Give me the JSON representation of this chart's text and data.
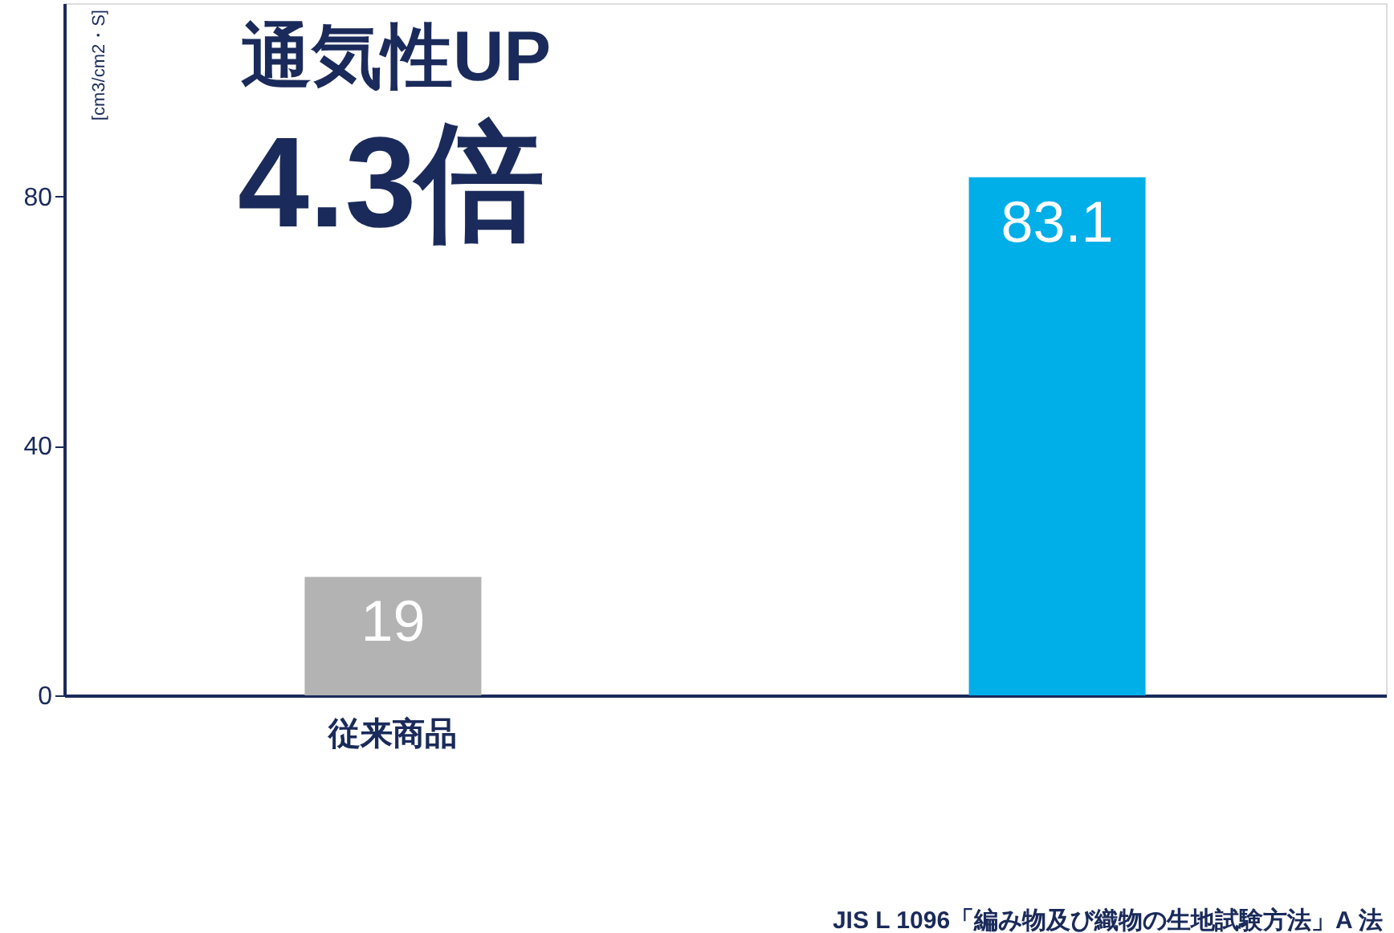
{
  "chart_data": {
    "type": "bar",
    "categories": [
      "従来商品",
      null
    ],
    "series": [
      {
        "colors": [
          "#b3b3b3",
          "#00aee8"
        ],
        "values": [
          19,
          83.1
        ]
      }
    ],
    "ylim": [
      0,
      111
    ],
    "yticks": [
      0,
      40,
      80
    ],
    "ylabel": "[cm3/cm2・S]",
    "data_labels": true,
    "grid": false,
    "annotations": [
      "通気性UP",
      "4.3倍",
      "JIS L 1096「編み物及び織物の生地試験方法」A 法"
    ]
  }
}
